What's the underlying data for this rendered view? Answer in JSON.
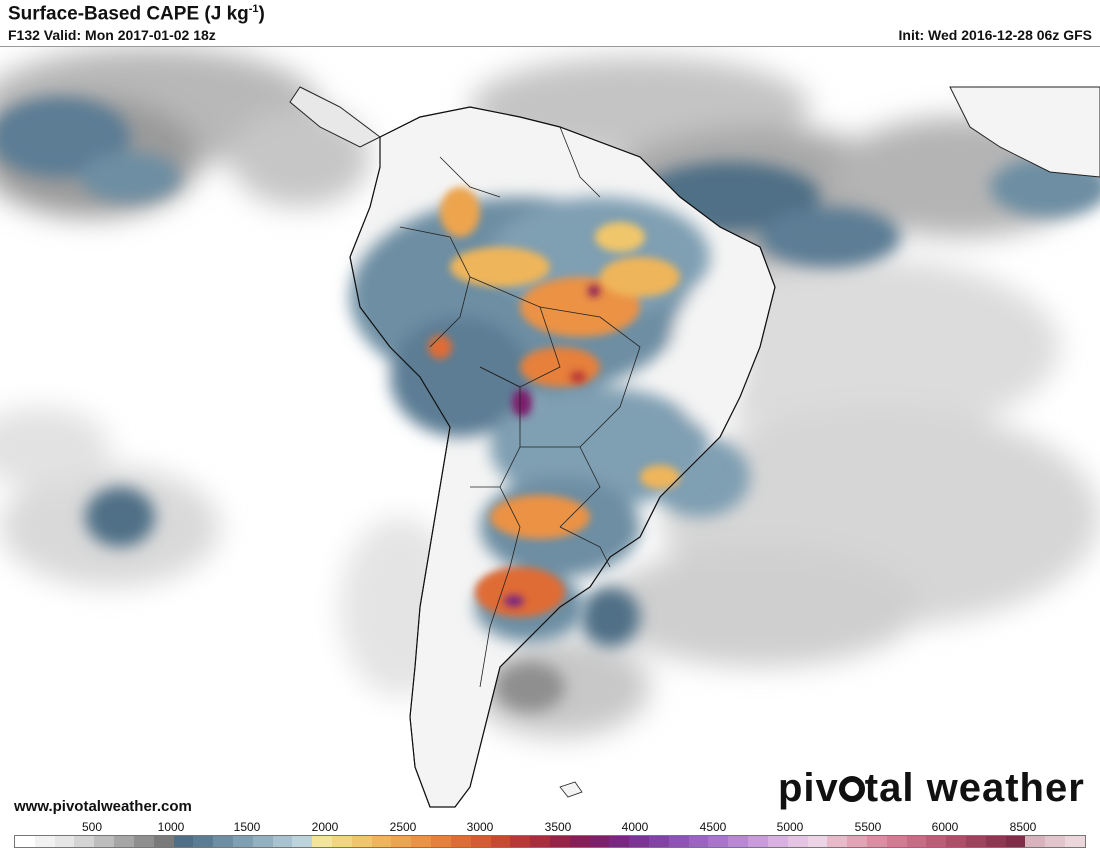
{
  "header": {
    "title_main": "Surface-Based CAPE (J kg",
    "title_sup": "-1",
    "title_end": ")",
    "valid": "F132 Valid: Mon 2017-01-02 18z",
    "init": "Init: Wed 2016-12-28 06z GFS"
  },
  "footer": {
    "website": "www.pivotalweather.com",
    "brand_left": "piv",
    "brand_right": "tal weather"
  },
  "legend": {
    "tick_labels": [
      "500",
      "1000",
      "1500",
      "2000",
      "2500",
      "3000",
      "3500",
      "4000",
      "4500",
      "5000",
      "5500",
      "6000",
      "8500"
    ],
    "colors": [
      "#ffffff",
      "#f2f2f2",
      "#e6e6e6",
      "#d4d4d4",
      "#bdbdbd",
      "#a6a6a6",
      "#8f8f8f",
      "#7a7a7a",
      "#4f6f86",
      "#5b7d94",
      "#6d8ea3",
      "#7f9fb2",
      "#93b0c0",
      "#a8c2cf",
      "#bdd3dc",
      "#f2e49a",
      "#f2d57f",
      "#f0c66a",
      "#efb55a",
      "#eda44e",
      "#eb9244",
      "#e6803b",
      "#e06c35",
      "#d65a32",
      "#c94832",
      "#b93835",
      "#a92d3d",
      "#972348",
      "#871e58",
      "#7d1f6c",
      "#7a2781",
      "#7d3394",
      "#8542a5",
      "#9052b4",
      "#9d63c0",
      "#ab74cb",
      "#b987d4",
      "#c99bdc",
      "#d8b0e2",
      "#e4c3e3",
      "#ecd3e6",
      "#e8b9c9",
      "#e2a3b6",
      "#db8ea3",
      "#d27b92",
      "#c86b84",
      "#bc5c76",
      "#ae4e69",
      "#9f425d",
      "#8f3752",
      "#7f2d48",
      "#d8b3bd",
      "#e2c5cc",
      "#ebd6db"
    ]
  },
  "map": {
    "region": "South America",
    "field": "Surface-Based CAPE"
  }
}
